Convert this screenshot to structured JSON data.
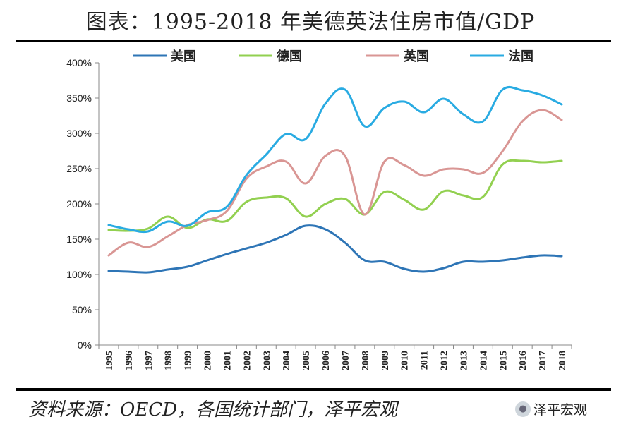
{
  "title": "图表：1995-2018 年美德英法住房市值/GDP",
  "source": "资料来源：OECD，各国统计部门，泽平宏观",
  "watermark": {
    "text": "泽平宏观",
    "icon": "wechat-icon"
  },
  "chart_data": {
    "type": "line",
    "title": "图表：1995-2018 年美德英法住房市值/GDP",
    "xlabel": "",
    "ylabel": "",
    "x": [
      "1995",
      "1996",
      "1997",
      "1998",
      "1999",
      "2000",
      "2001",
      "2002",
      "2003",
      "2004",
      "2005",
      "2006",
      "2007",
      "2008",
      "2009",
      "2010",
      "2011",
      "2012",
      "2013",
      "2014",
      "2015",
      "2016",
      "2017",
      "2018"
    ],
    "ylim": [
      0,
      400
    ],
    "yticks": [
      0,
      50,
      100,
      150,
      200,
      250,
      300,
      350,
      400
    ],
    "ytick_labels": [
      "0%",
      "50%",
      "100%",
      "150%",
      "200%",
      "250%",
      "300%",
      "350%",
      "400%"
    ],
    "y_unit": "%",
    "grid": false,
    "legend_position": "top",
    "series": [
      {
        "name": "美国",
        "color": "#2e75b6",
        "values": [
          105,
          104,
          103,
          107,
          111,
          120,
          129,
          137,
          145,
          156,
          169,
          164,
          145,
          120,
          118,
          108,
          104,
          109,
          118,
          118,
          120,
          124,
          127,
          126
        ]
      },
      {
        "name": "德国",
        "color": "#92d050",
        "values": [
          163,
          162,
          165,
          182,
          166,
          178,
          176,
          203,
          209,
          208,
          182,
          200,
          207,
          185,
          217,
          206,
          192,
          218,
          212,
          210,
          256,
          261,
          259,
          261
        ]
      },
      {
        "name": "英国",
        "color": "#d99694",
        "values": [
          127,
          145,
          139,
          154,
          170,
          177,
          190,
          236,
          253,
          260,
          229,
          268,
          268,
          185,
          260,
          255,
          240,
          249,
          249,
          244,
          275,
          317,
          333,
          319
        ]
      },
      {
        "name": "法国",
        "color": "#29abe2",
        "values": [
          170,
          164,
          161,
          175,
          169,
          188,
          196,
          241,
          270,
          299,
          292,
          342,
          362,
          310,
          336,
          345,
          330,
          349,
          327,
          317,
          362,
          361,
          354,
          341
        ]
      }
    ]
  }
}
